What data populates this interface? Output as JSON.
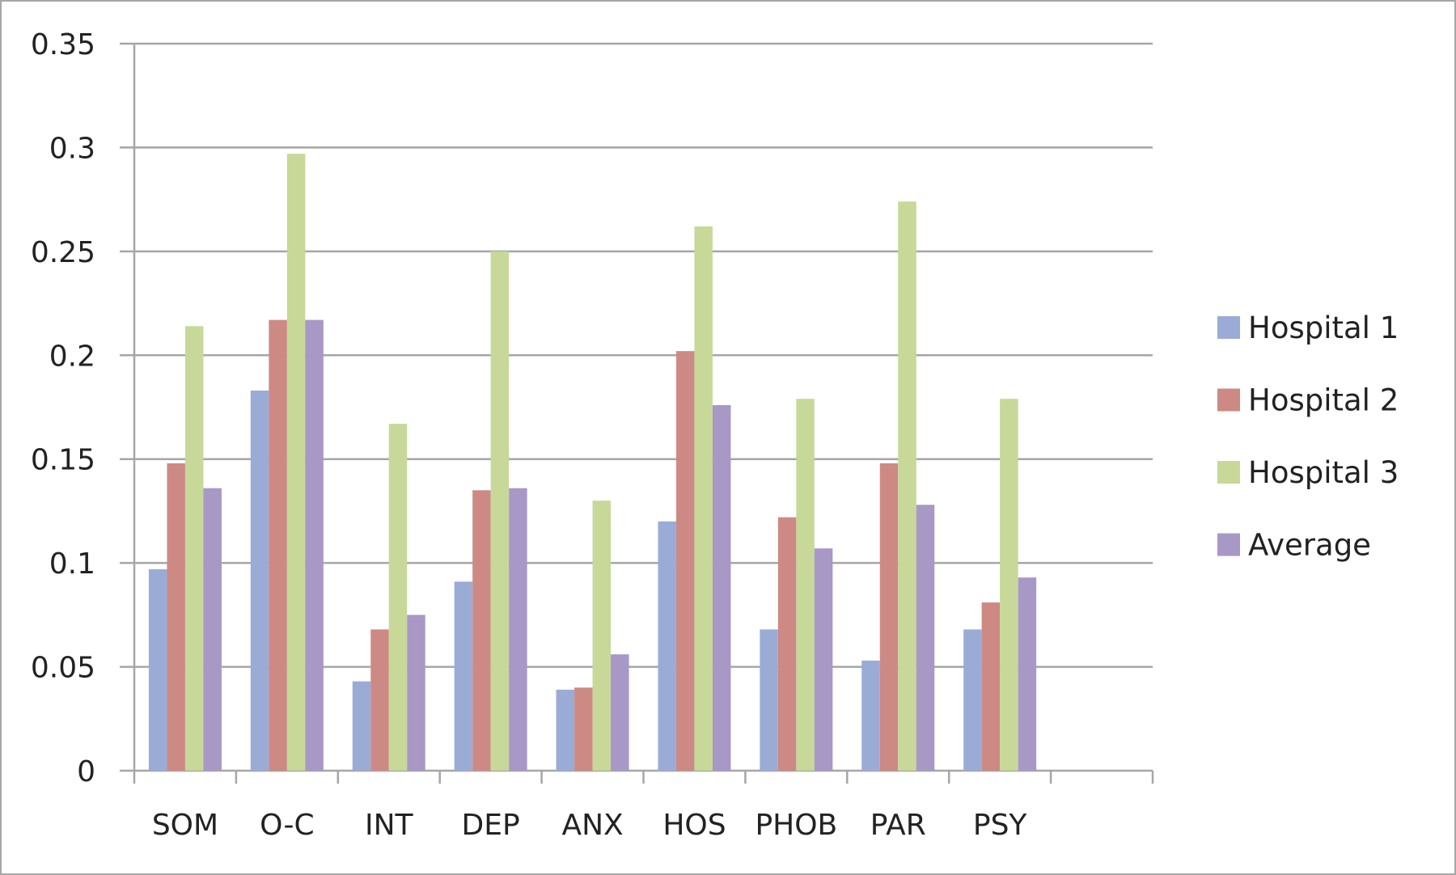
{
  "chart_data": {
    "type": "bar",
    "title": "",
    "xlabel": "",
    "ylabel": "",
    "categories": [
      "SOM",
      "O-C",
      "INT",
      "DEP",
      "ANX",
      "HOS",
      "PHOB",
      "PAR",
      "PSY"
    ],
    "ylim": [
      0,
      0.35
    ],
    "yticks": [
      "0",
      "0.05",
      "0.1",
      "0.15",
      "0.2",
      "0.25",
      "0.3",
      "0.35"
    ],
    "grid": true,
    "legend_position": "right",
    "series": [
      {
        "name": "Hospital 1",
        "color": "#9aacd6",
        "values": [
          0.097,
          0.183,
          0.043,
          0.091,
          0.039,
          0.12,
          0.068,
          0.053,
          0.068
        ]
      },
      {
        "name": "Hospital 2",
        "color": "#cd8a85",
        "values": [
          0.148,
          0.217,
          0.068,
          0.135,
          0.04,
          0.202,
          0.122,
          0.148,
          0.081
        ]
      },
      {
        "name": "Hospital 3",
        "color": "#c7d899",
        "values": [
          0.214,
          0.297,
          0.167,
          0.25,
          0.13,
          0.262,
          0.179,
          0.274,
          0.179
        ]
      },
      {
        "name": "Average",
        "color": "#a898c6",
        "values": [
          0.136,
          0.217,
          0.075,
          0.136,
          0.056,
          0.176,
          0.107,
          0.128,
          0.093
        ]
      }
    ],
    "colors": {
      "gridline": "#a6a6a6",
      "axis": "#a6a6a6",
      "text": "#222222",
      "border": "#a6a6a6"
    }
  }
}
